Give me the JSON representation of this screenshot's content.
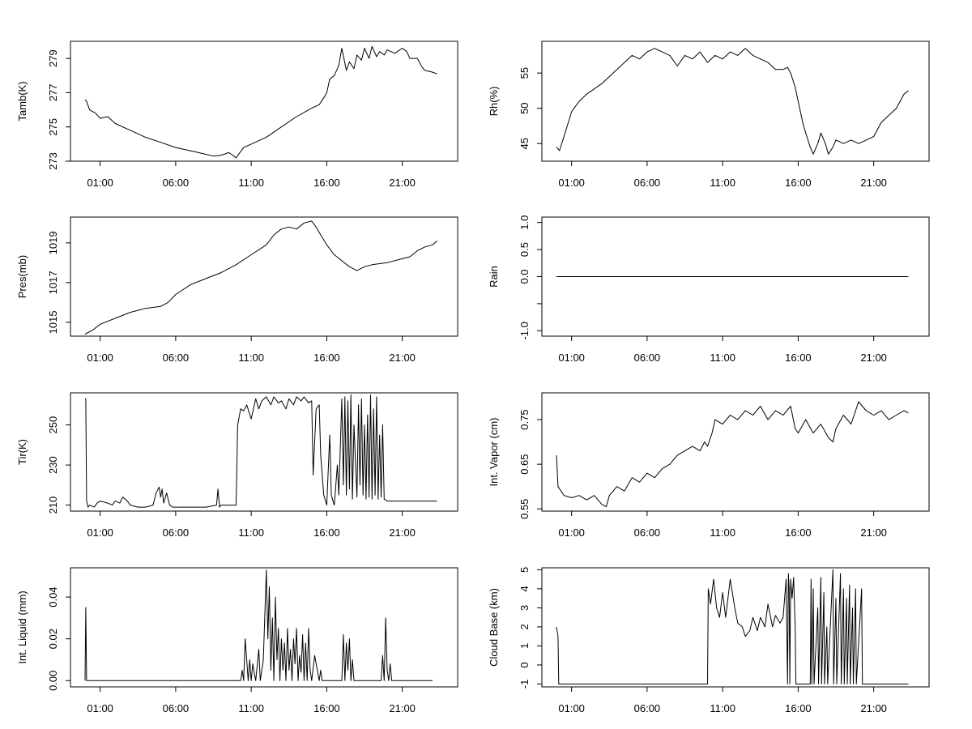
{
  "chart_data": [
    {
      "type": "line",
      "ylabel": "Tamb(K)",
      "xticks": [
        "01:00",
        "06:00",
        "11:00",
        "16:00",
        "21:00"
      ],
      "xlim": [
        0,
        24
      ],
      "ylim": [
        273,
        280
      ],
      "yticks": [
        273,
        275,
        277,
        279
      ],
      "series": [
        {
          "x": [
            0,
            0.1,
            0.3,
            0.7,
            1.0,
            1.5,
            2,
            3,
            4,
            5,
            6,
            7,
            7.5,
            8,
            8.5,
            9,
            9.2,
            9.5,
            9.7,
            10,
            10.5,
            11,
            12,
            13,
            14,
            15,
            15.5,
            15.8,
            16,
            16.2,
            16.5,
            16.8,
            17,
            17.3,
            17.5,
            17.8,
            18,
            18.3,
            18.5,
            18.8,
            19,
            19.3,
            19.5,
            19.8,
            20,
            20.5,
            21,
            21.3,
            21.5,
            22,
            22.3,
            22.5,
            23,
            23.3
          ],
          "y": [
            276.6,
            276.5,
            276.0,
            275.8,
            275.5,
            275.6,
            275.2,
            274.8,
            274.4,
            274.1,
            273.8,
            273.6,
            273.5,
            273.4,
            273.3,
            273.35,
            273.4,
            273.5,
            273.4,
            273.2,
            273.8,
            274.0,
            274.4,
            275.0,
            275.6,
            276.1,
            276.3,
            276.7,
            277.0,
            277.8,
            278.0,
            278.6,
            279.6,
            278.3,
            278.8,
            278.4,
            279.2,
            278.9,
            279.6,
            279.0,
            279.7,
            279.1,
            279.4,
            279.2,
            279.5,
            279.3,
            279.6,
            279.4,
            279.0,
            279.0,
            278.5,
            278.3,
            278.2,
            278.1
          ]
        }
      ]
    },
    {
      "type": "line",
      "ylabel": "Rh(%)",
      "xticks": [
        "01:00",
        "06:00",
        "11:00",
        "16:00",
        "21:00"
      ],
      "xlim": [
        0,
        24
      ],
      "ylim": [
        42.5,
        59.5
      ],
      "yticks": [
        45,
        50,
        55
      ],
      "series": [
        {
          "x": [
            0,
            0.2,
            0.5,
            1,
            1.5,
            2,
            3,
            4,
            5,
            5.5,
            6,
            6.5,
            7,
            7.5,
            8,
            8.5,
            9,
            9.5,
            10,
            10.5,
            11,
            11.5,
            12,
            12.5,
            13,
            13.5,
            14,
            14.5,
            15,
            15.3,
            15.5,
            15.8,
            16,
            16.3,
            16.5,
            16.8,
            17,
            17.3,
            17.5,
            17.8,
            18,
            18.3,
            18.5,
            19,
            19.5,
            20,
            20.5,
            21,
            21.5,
            22,
            22.5,
            23,
            23.3
          ],
          "y": [
            44.5,
            44.0,
            46.0,
            49.5,
            51.0,
            52.0,
            53.5,
            55.5,
            57.5,
            57.0,
            58.0,
            58.5,
            58.0,
            57.5,
            56.0,
            57.5,
            57.0,
            58.0,
            56.5,
            57.5,
            57.0,
            58.0,
            57.5,
            58.5,
            57.5,
            57.0,
            56.5,
            55.5,
            55.5,
            55.8,
            55.0,
            53.0,
            51.0,
            48.0,
            46.5,
            44.5,
            43.5,
            45.0,
            46.5,
            45.0,
            43.5,
            44.5,
            45.5,
            45.0,
            45.5,
            45.0,
            45.5,
            46.0,
            48.0,
            49.0,
            50.0,
            52.0,
            52.5
          ]
        }
      ]
    },
    {
      "type": "line",
      "ylabel": "Pres(mb)",
      "xticks": [
        "01:00",
        "06:00",
        "11:00",
        "16:00",
        "21:00"
      ],
      "xlim": [
        0,
        24
      ],
      "ylim": [
        1014.3,
        1020.3
      ],
      "yticks": [
        1015,
        1017,
        1019
      ],
      "series": [
        {
          "x": [
            0,
            0.5,
            1,
            2,
            3,
            4,
            5,
            5.5,
            6,
            7,
            8,
            9,
            10,
            11,
            12,
            12.5,
            13,
            13.5,
            14,
            14.5,
            15,
            15.3,
            15.6,
            16,
            16.5,
            17,
            17.5,
            18,
            18.5,
            19,
            20,
            21,
            21.5,
            22,
            22.5,
            23,
            23.3
          ],
          "y": [
            1014.4,
            1014.6,
            1014.9,
            1015.2,
            1015.5,
            1015.7,
            1015.8,
            1016.0,
            1016.4,
            1016.9,
            1017.2,
            1017.5,
            1017.9,
            1018.4,
            1018.9,
            1019.4,
            1019.7,
            1019.8,
            1019.7,
            1020.0,
            1020.1,
            1019.8,
            1019.4,
            1018.9,
            1018.4,
            1018.1,
            1017.8,
            1017.6,
            1017.8,
            1017.9,
            1018.0,
            1018.2,
            1018.3,
            1018.6,
            1018.8,
            1018.9,
            1019.1
          ]
        }
      ]
    },
    {
      "type": "line",
      "ylabel": "Rain",
      "xticks": [
        "01:00",
        "06:00",
        "11:00",
        "16:00",
        "21:00"
      ],
      "xlim": [
        0,
        24
      ],
      "ylim": [
        -1.1,
        1.1
      ],
      "yticks": [
        -1.0,
        -0.5,
        0.0,
        0.5,
        1.0
      ],
      "ytick_labels": [
        "-1.0",
        "",
        "0.0",
        "0.5",
        "1.0"
      ],
      "series": [
        {
          "x": [
            0,
            23.3
          ],
          "y": [
            0,
            0
          ]
        }
      ]
    },
    {
      "type": "line",
      "ylabel": "Tir(K)",
      "xticks": [
        "01:00",
        "06:00",
        "11:00",
        "16:00",
        "21:00"
      ],
      "xlim": [
        0,
        24
      ],
      "ylim": [
        207,
        266
      ],
      "yticks": [
        210,
        230,
        250
      ],
      "series": [
        {
          "x": [
            0,
            0.05,
            0.1,
            0.2,
            0.3,
            0.6,
            0.8,
            1,
            1.5,
            1.8,
            2,
            2.3,
            2.5,
            2.8,
            3,
            3.5,
            4,
            4.5,
            4.7,
            4.9,
            5,
            5.1,
            5.2,
            5.4,
            5.6,
            5.8,
            6,
            7,
            8,
            8.7,
            8.8,
            8.9,
            9,
            9.5,
            9.9,
            10,
            10.1,
            10.3,
            10.5,
            10.7,
            11,
            11.3,
            11.5,
            11.7,
            12,
            12.3,
            12.5,
            12.8,
            13,
            13.3,
            13.5,
            13.8,
            14,
            14.3,
            14.5,
            14.8,
            15,
            15.1,
            15.3,
            15.5,
            15.6,
            15.8,
            16,
            16.2,
            16.3,
            16.5,
            16.7,
            16.8,
            17,
            17.1,
            17.2,
            17.3,
            17.4,
            17.5,
            17.6,
            17.7,
            17.8,
            18,
            18.1,
            18.2,
            18.3,
            18.4,
            18.5,
            18.6,
            18.7,
            18.8,
            18.9,
            19,
            19.1,
            19.2,
            19.3,
            19.4,
            19.5,
            19.6,
            19.7,
            19.8,
            20,
            20.5,
            21,
            22,
            23,
            23.3
          ],
          "y": [
            263,
            263,
            212,
            209,
            210,
            209,
            211,
            212,
            211,
            210,
            212,
            211,
            214,
            212,
            210,
            209,
            209,
            210,
            216,
            219,
            214,
            218,
            211,
            216,
            210,
            209,
            209,
            209,
            209,
            210,
            218,
            209,
            210,
            210,
            210,
            210,
            250,
            258,
            257,
            260,
            253,
            263,
            258,
            262,
            264,
            260,
            264,
            261,
            262,
            258,
            263,
            260,
            264,
            262,
            264,
            261,
            262,
            225,
            258,
            260,
            235,
            215,
            210,
            245,
            215,
            210,
            230,
            215,
            263,
            220,
            264,
            215,
            262,
            218,
            265,
            213,
            250,
            214,
            260,
            220,
            263,
            215,
            250,
            213,
            255,
            214,
            265,
            213,
            258,
            215,
            264,
            213,
            245,
            214,
            250,
            213,
            212,
            212,
            212,
            212,
            212,
            212
          ]
        }
      ]
    },
    {
      "type": "line",
      "ylabel": "Int. Vapor (cm)",
      "xticks": [
        "01:00",
        "06:00",
        "11:00",
        "16:00",
        "21:00"
      ],
      "xlim": [
        0,
        24
      ],
      "ylim": [
        0.545,
        0.81
      ],
      "yticks": [
        0.55,
        0.65,
        0.75
      ],
      "series": [
        {
          "x": [
            0,
            0.1,
            0.3,
            0.5,
            1,
            1.5,
            2,
            2.5,
            3,
            3.3,
            3.5,
            4,
            4.5,
            5,
            5.5,
            6,
            6.5,
            7,
            7.5,
            8,
            8.5,
            9,
            9.5,
            9.8,
            10,
            10.3,
            10.5,
            11,
            11.5,
            12,
            12.5,
            13,
            13.5,
            14,
            14.5,
            15,
            15.5,
            15.8,
            16,
            16.5,
            17,
            17.5,
            18,
            18.3,
            18.5,
            19,
            19.5,
            20,
            20.5,
            21,
            21.5,
            22,
            22.5,
            23,
            23.3
          ],
          "y": [
            0.67,
            0.6,
            0.59,
            0.58,
            0.575,
            0.58,
            0.57,
            0.58,
            0.56,
            0.555,
            0.58,
            0.6,
            0.59,
            0.62,
            0.61,
            0.63,
            0.62,
            0.64,
            0.65,
            0.67,
            0.68,
            0.69,
            0.68,
            0.7,
            0.69,
            0.72,
            0.75,
            0.74,
            0.76,
            0.75,
            0.77,
            0.76,
            0.78,
            0.75,
            0.77,
            0.76,
            0.78,
            0.73,
            0.72,
            0.75,
            0.72,
            0.74,
            0.71,
            0.7,
            0.73,
            0.76,
            0.74,
            0.79,
            0.77,
            0.76,
            0.77,
            0.75,
            0.76,
            0.77,
            0.765
          ]
        }
      ]
    },
    {
      "type": "line",
      "ylabel": "Int. Liquid (mm)",
      "xticks": [
        "01:00",
        "06:00",
        "11:00",
        "16:00",
        "21:00"
      ],
      "xlim": [
        0,
        24
      ],
      "ylim": [
        -0.003,
        0.054
      ],
      "yticks": [
        0.0,
        0.02,
        0.04
      ],
      "ytick_labels": [
        "0.00",
        "0.02",
        "0.04"
      ],
      "series": [
        {
          "x": [
            0,
            0.05,
            0.1,
            0.2,
            10,
            10.3,
            10.4,
            10.5,
            10.6,
            10.8,
            10.9,
            11,
            11.1,
            11.3,
            11.5,
            11.6,
            11.8,
            12,
            12.1,
            12.2,
            12.3,
            12.4,
            12.5,
            12.6,
            12.7,
            12.8,
            12.9,
            13,
            13.1,
            13.2,
            13.3,
            13.4,
            13.5,
            13.6,
            13.7,
            13.8,
            13.9,
            14,
            14.1,
            14.2,
            14.3,
            14.4,
            14.5,
            14.6,
            14.7,
            14.8,
            14.9,
            15,
            15.2,
            15.5,
            15.6,
            15.7,
            17,
            17.1,
            17.2,
            17.3,
            17.4,
            17.5,
            17.6,
            17.7,
            17.8,
            19.6,
            19.7,
            19.8,
            19.9,
            20.0,
            20.1,
            20.2,
            20.3,
            23.0
          ],
          "y": [
            0.0,
            0.035,
            0.0,
            0.0,
            0.0,
            0.0,
            0.005,
            0.0,
            0.02,
            0.0,
            0.01,
            0.0,
            0.008,
            0.0,
            0.015,
            0.0,
            0.01,
            0.053,
            0.02,
            0.045,
            0.005,
            0.03,
            0.0,
            0.04,
            0.01,
            0.025,
            0.0,
            0.02,
            0.005,
            0.018,
            0.0,
            0.025,
            0.005,
            0.015,
            0.0,
            0.02,
            0.008,
            0.025,
            0.0,
            0.012,
            0.004,
            0.022,
            0.0,
            0.018,
            0.0,
            0.025,
            0.005,
            0.0,
            0.012,
            0.0,
            0.005,
            0.0,
            0.0,
            0.022,
            0.0,
            0.018,
            0.005,
            0.02,
            0.0,
            0.01,
            0.0,
            0.0,
            0.012,
            0.0,
            0.03,
            0.005,
            0.0,
            0.008,
            0.0,
            0.0
          ]
        }
      ]
    },
    {
      "type": "line",
      "ylabel": "Cloud Base (km)",
      "xticks": [
        "01:00",
        "06:00",
        "11:00",
        "16:00",
        "21:00"
      ],
      "xlim": [
        0,
        24
      ],
      "ylim": [
        -1.15,
        5.1
      ],
      "yticks": [
        -1,
        0,
        1,
        2,
        3,
        4,
        5
      ],
      "series": [
        {
          "x": [
            0,
            0.1,
            0.15,
            10,
            10.05,
            10.2,
            10.4,
            10.6,
            10.8,
            11,
            11.2,
            11.5,
            11.8,
            12,
            12.3,
            12.5,
            12.8,
            13,
            13.3,
            13.5,
            13.8,
            14,
            14.3,
            14.5,
            14.8,
            15,
            15.2,
            15.3,
            15.35,
            15.4,
            15.45,
            15.5,
            15.6,
            15.7,
            15.8,
            15.85,
            15.9,
            16,
            16.8,
            16.85,
            16.9,
            17.0,
            17.05,
            17.3,
            17.35,
            17.5,
            17.55,
            17.7,
            17.75,
            17.9,
            17.95,
            18.3,
            18.35,
            18.5,
            18.55,
            18.8,
            18.85,
            19.0,
            19.05,
            19.2,
            19.25,
            19.4,
            19.45,
            19.6,
            19.65,
            19.8,
            19.85,
            20.2,
            20.25,
            20.5,
            20.55,
            23.3
          ],
          "y": [
            2.0,
            1.5,
            -1,
            -1,
            4.0,
            3.2,
            4.5,
            3.0,
            2.5,
            3.8,
            2.5,
            4.5,
            3.0,
            2.2,
            2.0,
            1.5,
            1.8,
            2.5,
            1.8,
            2.5,
            2.0,
            3.2,
            2.0,
            2.6,
            2.2,
            2.5,
            4.5,
            -1,
            4.8,
            4.0,
            -1,
            4.5,
            3.5,
            4.6,
            2.0,
            -1,
            -1,
            -1,
            -1,
            4.5,
            -1,
            4.0,
            -1,
            3.0,
            -1,
            4.6,
            -1,
            3.8,
            -1,
            2.0,
            -1,
            5.0,
            -1,
            3.5,
            -1,
            4.8,
            -1,
            4.0,
            -1,
            3.5,
            -1,
            4.2,
            -1,
            3.0,
            -1,
            4.0,
            -1,
            4.0,
            -1,
            -1,
            -1,
            -1
          ]
        }
      ]
    }
  ]
}
